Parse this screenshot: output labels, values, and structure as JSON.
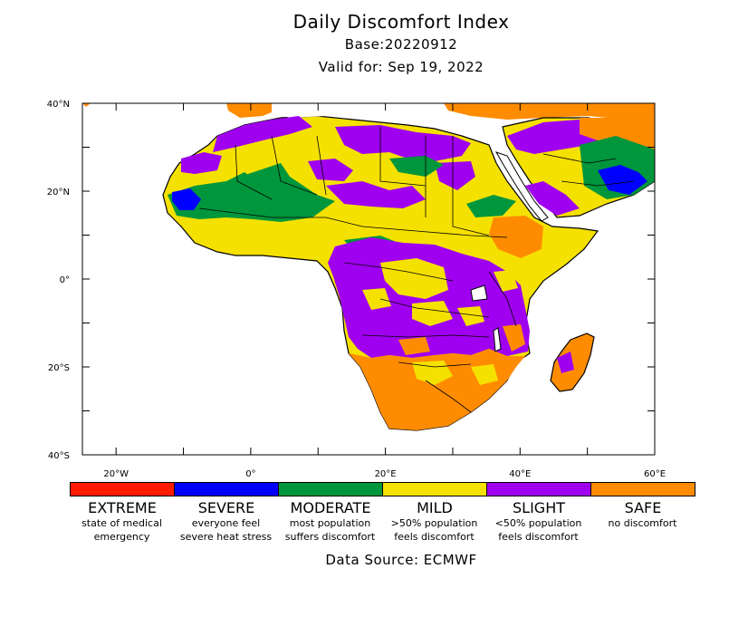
{
  "header": {
    "title": "Daily Discomfort Index",
    "base": "Base:20220912",
    "valid": "Valid for: Sep 19, 2022"
  },
  "map": {
    "lat_ticks": [
      {
        "value": 40,
        "label": "40°N"
      },
      {
        "value": 20,
        "label": "20°N"
      },
      {
        "value": 0,
        "label": "0°"
      },
      {
        "value": -20,
        "label": "20°S"
      },
      {
        "value": -40,
        "label": "40°S"
      }
    ],
    "lon_ticks": [
      {
        "value": -20,
        "label": "20°W"
      },
      {
        "value": 0,
        "label": "0°"
      },
      {
        "value": 20,
        "label": "20°E"
      },
      {
        "value": 40,
        "label": "40°E"
      },
      {
        "value": 60,
        "label": "60°E"
      }
    ],
    "lon_range": [
      -25,
      60
    ],
    "lat_range": [
      -40,
      40
    ]
  },
  "legend": [
    {
      "name": "EXTREME",
      "color": "#ff1a00",
      "desc1": "state of medical",
      "desc2": "emergency"
    },
    {
      "name": "SEVERE",
      "color": "#0000ff",
      "desc1": "everyone feel",
      "desc2": "severe heat stress"
    },
    {
      "name": "MODERATE",
      "color": "#00963c",
      "desc1": "most population",
      "desc2": "suffers discomfort"
    },
    {
      "name": "MILD",
      "color": "#f5e100",
      "desc1": ">50% population",
      "desc2": "feels discomfort"
    },
    {
      "name": "SLIGHT",
      "color": "#a000f0",
      "desc1": "<50% population",
      "desc2": "feels discomfort"
    },
    {
      "name": "SAFE",
      "color": "#ff8c00",
      "desc1": "no discomfort",
      "desc2": ""
    }
  ],
  "footer": {
    "source": "Data Source: ECMWF"
  }
}
